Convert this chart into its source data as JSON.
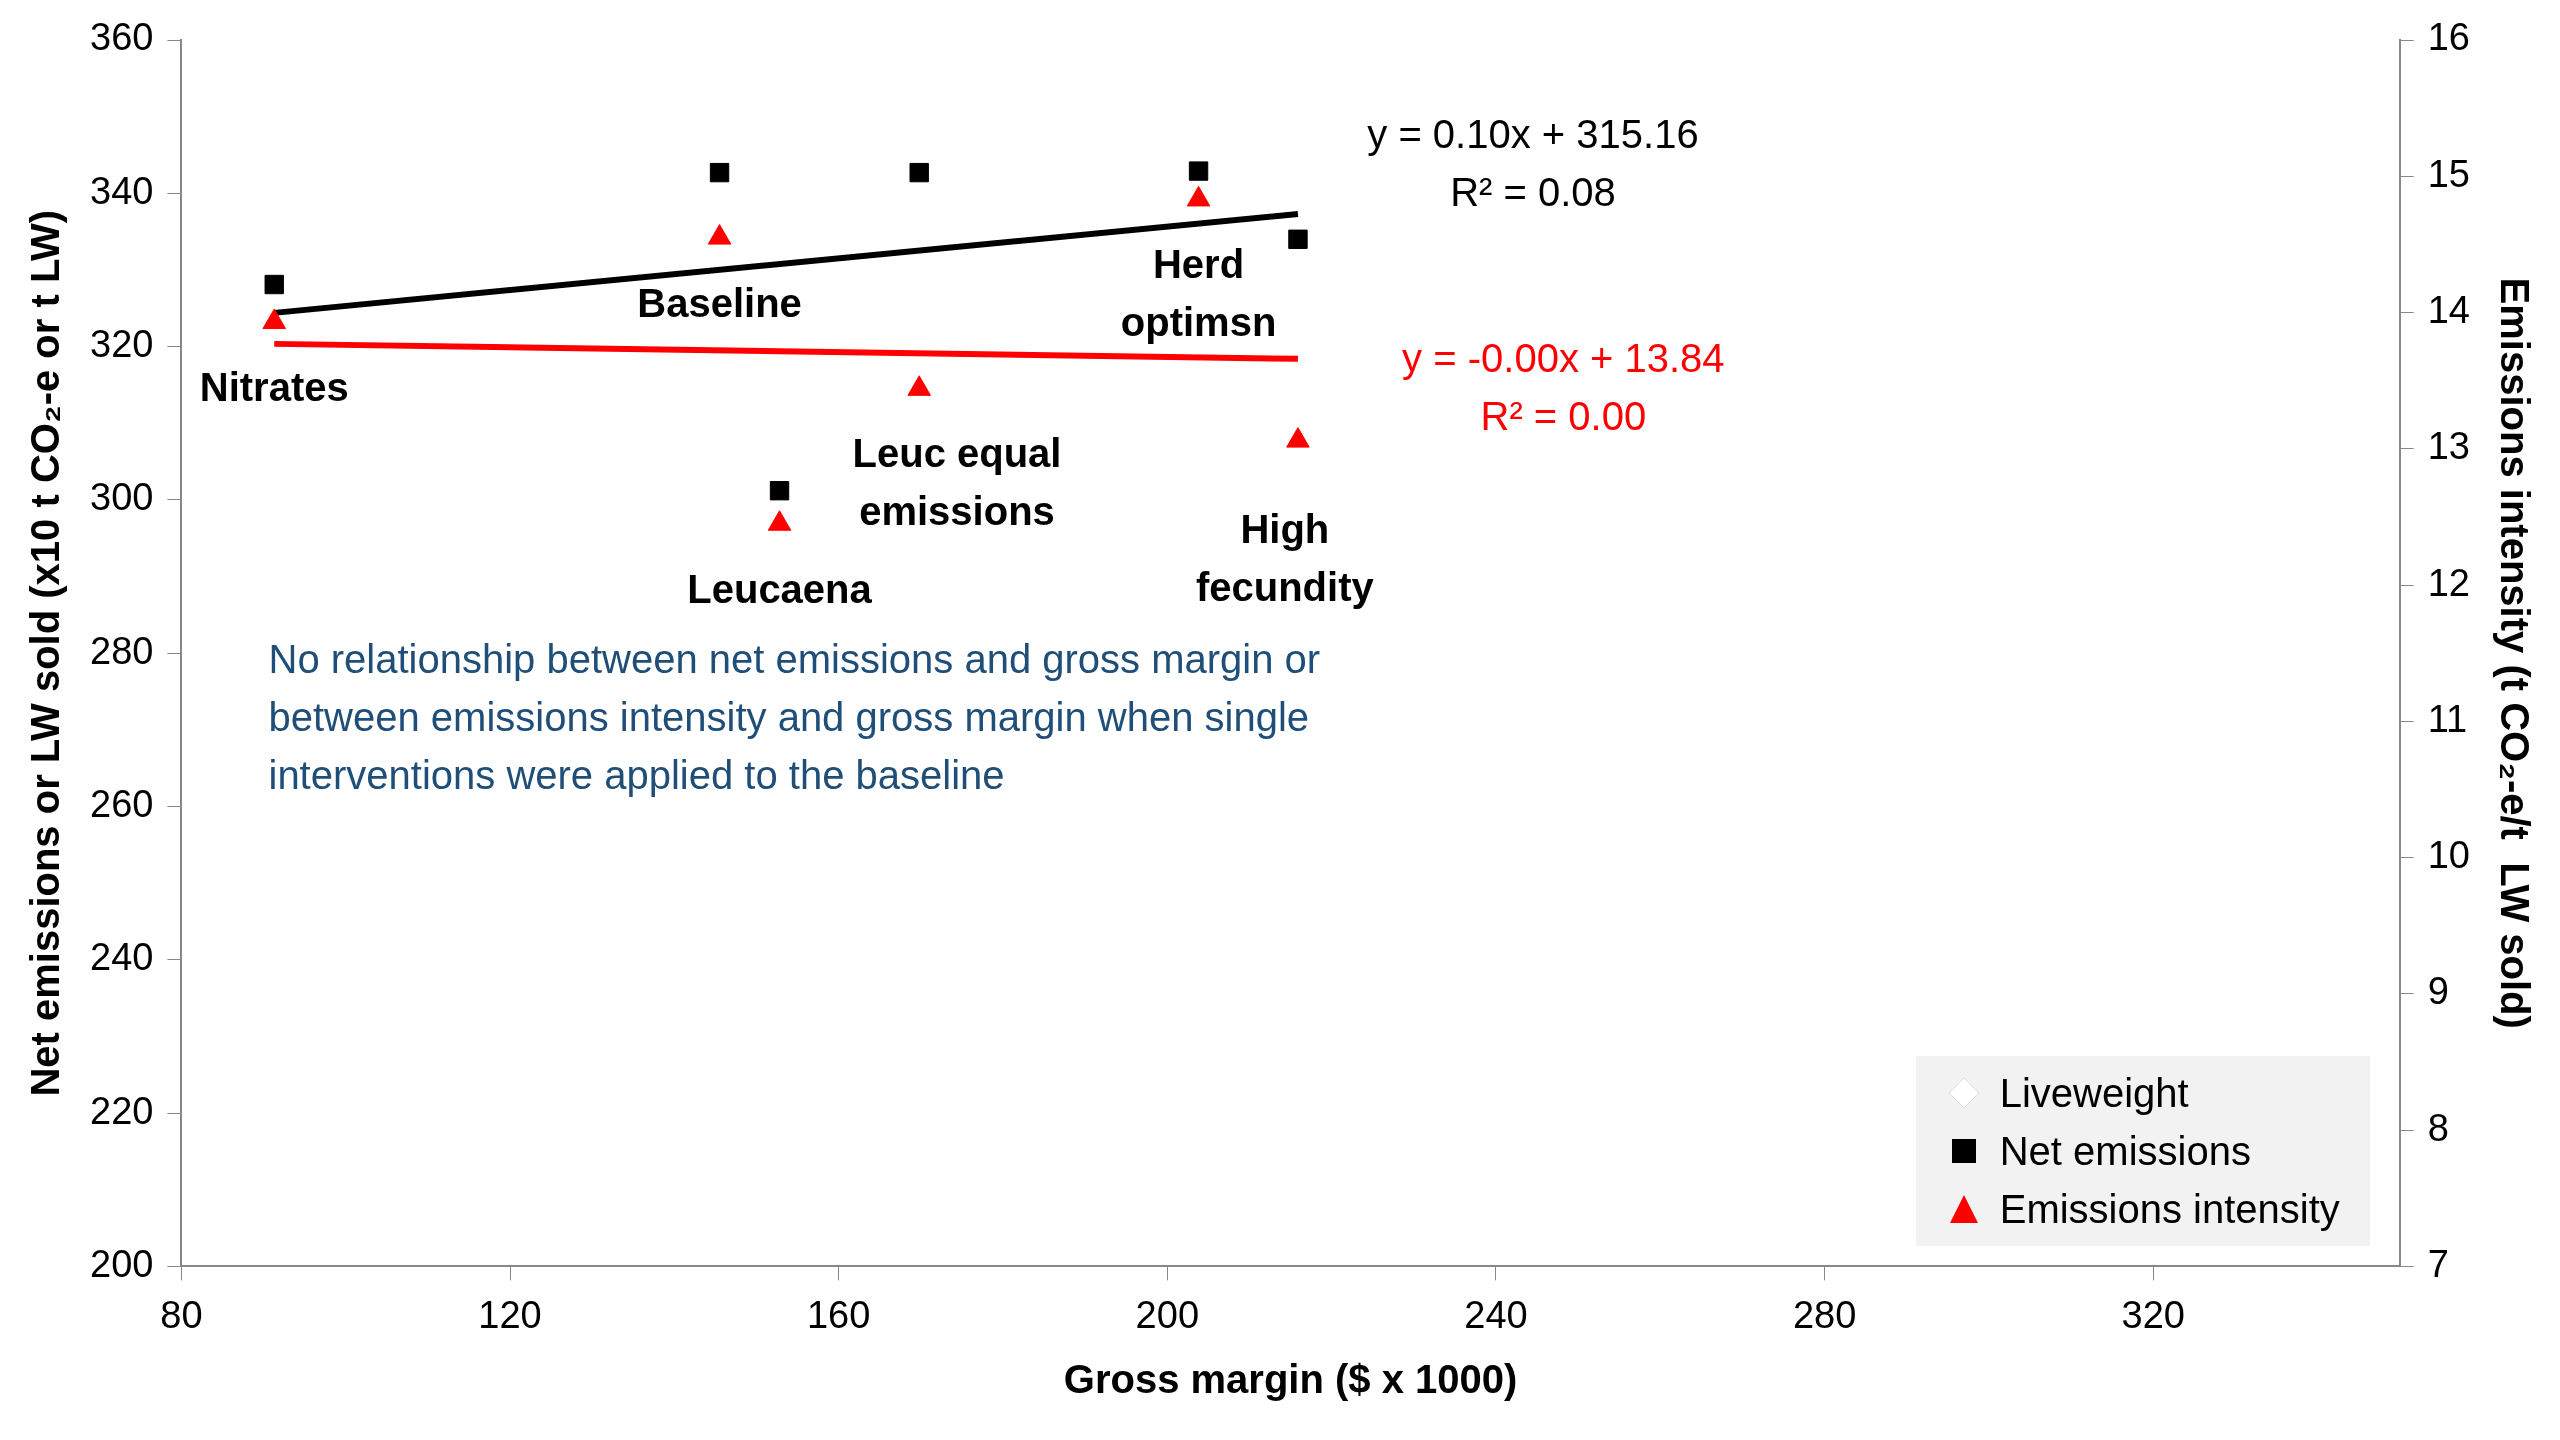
{
  "chart_data": {
    "type": "scatter",
    "xlabel": "Gross margin ($ x 1000)",
    "ylabel": "Net emissions or LW sold (x10 t CO₂-e or t LW)",
    "y2label": "Emissions intensity (t CO₂-e/t  LW sold)",
    "xlim": [
      80,
      350
    ],
    "xticks": [
      80,
      120,
      160,
      200,
      240,
      280,
      320
    ],
    "ylim": [
      200,
      360
    ],
    "yticks": [
      200,
      220,
      240,
      260,
      280,
      300,
      320,
      340,
      360
    ],
    "y2lim": [
      7,
      16
    ],
    "y2ticks": [
      7,
      8,
      9,
      10,
      11,
      12,
      13,
      14,
      15,
      16
    ],
    "grid": false,
    "legend": "bottom right",
    "series": [
      {
        "name": "Liveweight",
        "marker": "diamond",
        "color": "#ffffff"
      },
      {
        "name": "Net emissions",
        "marker": "square",
        "color": "#000000",
        "x": [
          91.3,
          145.5,
          169.8,
          203.8,
          215.9,
          152.8
        ],
        "values": [
          328.1,
          342.7,
          342.7,
          342.9,
          334,
          301.2
        ]
      },
      {
        "name": "Emissions intensity",
        "marker": "triangle",
        "color": "#ff0000",
        "axis": "y2",
        "x": [
          91.3,
          145.5,
          169.8,
          203.8,
          215.9,
          152.8
        ],
        "values": [
          13.93,
          14.55,
          13.44,
          14.83,
          13.06,
          12.45
        ]
      },
      {
        "type": "line",
        "marker": "none",
        "color": "#000000",
        "x": [
          91.3,
          215.9
        ],
        "values": [
          324.4,
          337.3
        ]
      },
      {
        "type": "line",
        "marker": "none",
        "color": "#ff0000",
        "axis": "y2",
        "x": [
          91.3,
          215.9
        ],
        "values": [
          13.77,
          13.66
        ]
      }
    ],
    "annotations": [
      {
        "text": "Nitrates",
        "x": 91.3,
        "y": 328.1
      },
      {
        "text": "Baseline",
        "x": 145.5,
        "y": 342.7
      },
      "Leuc equal\nemissions",
      {
        "text": "Leucaena",
        "x": 152.8,
        "y": 301.2
      },
      {
        "text": "Herd\noptimsn",
        "x": 203.8,
        "y": 342.9
      },
      "High\nfecundity",
      {
        "text": "y = 0.10x + 315.16\nR² = 0.08",
        "x": 215.9,
        "y": 337.3
      },
      "y = -0.00x + 13.84\nR² = 0.00",
      "No relationship between net emissions and gross margin or\nbetween emissions intensity and gross margin when single\ninterventions were applied to the baseline"
    ]
  }
}
